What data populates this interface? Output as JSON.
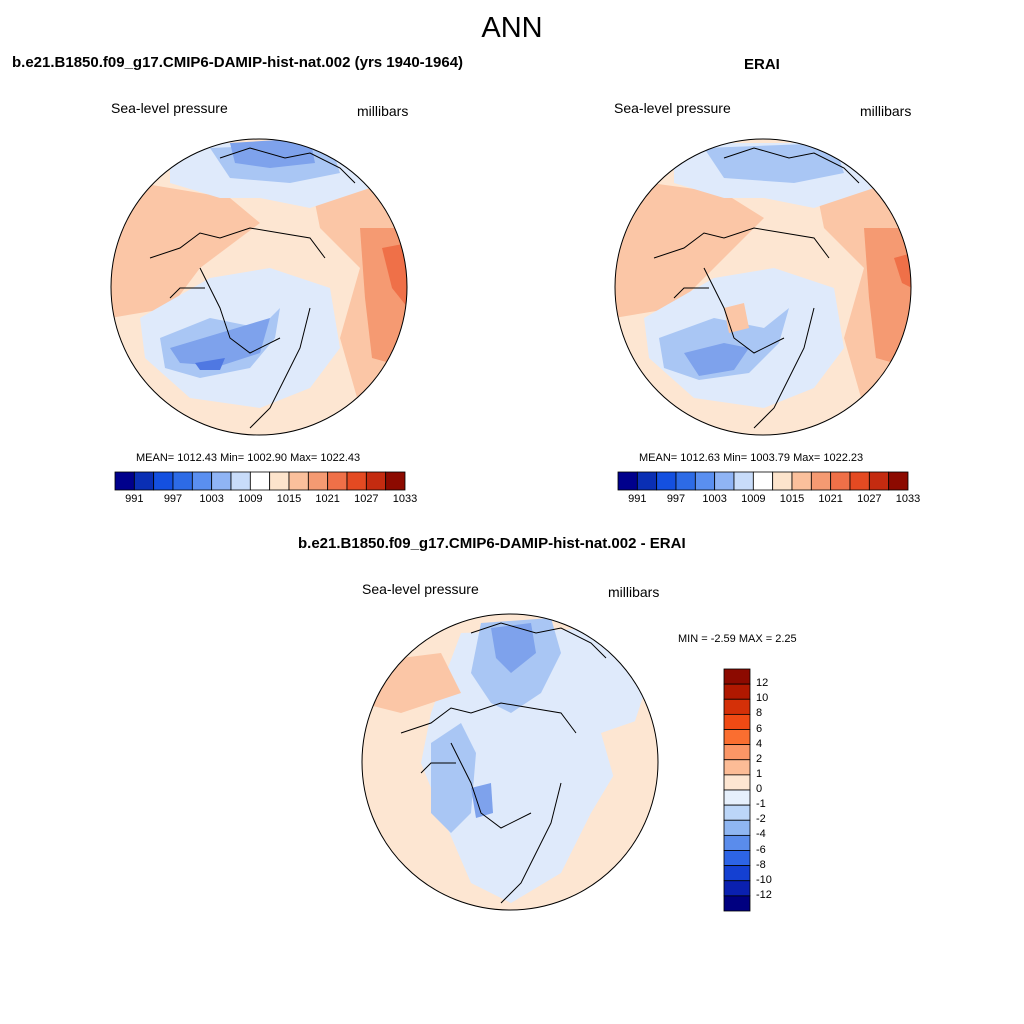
{
  "figure": {
    "season": "ANN",
    "left_panel": {
      "title": "b.e21.B1850.f09_g17.CMIP6-DAMIP-hist-nat.002 (yrs 1940-1964)",
      "variable": "Sea-level pressure",
      "units": "millibars",
      "stats": "MEAN= 1012.43  Min= 1002.90  Max= 1022.43"
    },
    "right_panel": {
      "title": "ERAI",
      "variable": "Sea-level pressure",
      "units": "millibars",
      "stats": "MEAN= 1012.63  Min= 1003.79  Max= 1022.23"
    },
    "diff_panel": {
      "title": "b.e21.B1850.f09_g17.CMIP6-DAMIP-hist-nat.002 - ERAI",
      "variable": "Sea-level pressure",
      "units": "millibars",
      "stats": "MIN =  -2.59 MAX =   2.25"
    }
  },
  "colorbars": {
    "abs_ticks": [
      "991",
      "997",
      "1003",
      "1009",
      "1015",
      "1021",
      "1027",
      "1033"
    ],
    "abs_colors": [
      "#00008c",
      "#0a2fb4",
      "#1450e0",
      "#2d6be6",
      "#5a8ff0",
      "#8fb4f5",
      "#c8dcfa",
      "#ffffff",
      "#fde4cc",
      "#fbc09c",
      "#f59a72",
      "#ef7048",
      "#e44a22",
      "#c42b10",
      "#8c0a00"
    ],
    "diff_ticks": [
      "12",
      "10",
      "8",
      "6",
      "4",
      "2",
      "1",
      "0",
      "-1",
      "-2",
      "-4",
      "-6",
      "-8",
      "-10",
      "-12"
    ],
    "diff_colors": [
      "#8c0a00",
      "#b01800",
      "#d43008",
      "#f04a14",
      "#fa6e30",
      "#fb9666",
      "#fcbc96",
      "#fde6d2",
      "#e6f0fc",
      "#bcd6f8",
      "#8fb6f2",
      "#5a8cec",
      "#2d64e6",
      "#1440d2",
      "#0a20b0",
      "#000080"
    ]
  },
  "map_colors": {
    "ocean_land_base": "#fde6d2",
    "warm_mid": "#fbc6a6",
    "warm_high": "#f59a72",
    "warm_peak": "#ef7048",
    "cool_low": "#dfeafb",
    "cool_mid": "#a9c6f4",
    "cool_deep": "#7ea2ec",
    "cool_core": "#4f78e2",
    "coast": "#000000"
  }
}
